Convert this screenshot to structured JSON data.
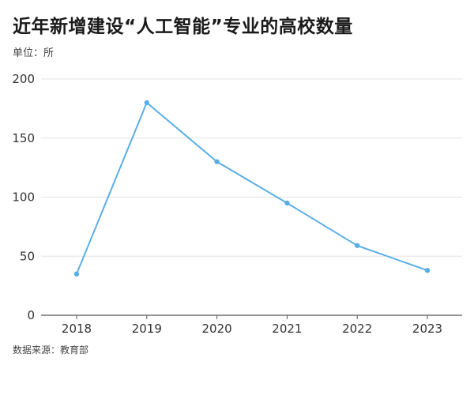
{
  "header": {
    "title": "近年新增建设“人工智能”专业的高校数量",
    "unit": "单位：所"
  },
  "footer": {
    "source": "数据来源：教育部"
  },
  "colors": {
    "line": "#5aaee6",
    "grid": "#e3e3e3",
    "axis": "#555555"
  },
  "chart_data": {
    "type": "line",
    "title": "近年新增建设“人工智能”专业的高校数量",
    "xlabel": "",
    "ylabel": "单位：所",
    "categories": [
      "2018",
      "2019",
      "2020",
      "2021",
      "2022",
      "2023"
    ],
    "series": [
      {
        "values": [
          35,
          180,
          130,
          95,
          59,
          38
        ]
      }
    ],
    "ylim": [
      0,
      200
    ],
    "yticks": [
      0,
      50,
      100,
      150,
      200
    ],
    "grid": true,
    "legend": "none"
  }
}
